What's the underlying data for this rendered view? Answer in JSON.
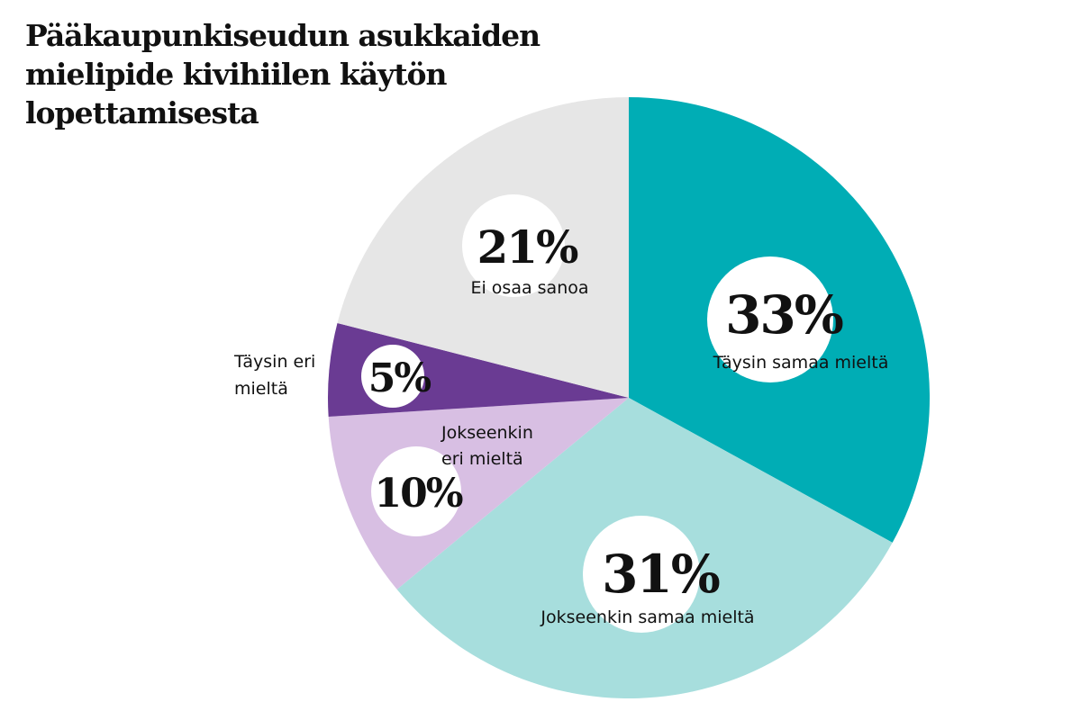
{
  "title": "Pääkaupunkiseudun asukkaiden mielipide kivihiilen käytön lopettamisesta",
  "chart_data": {
    "type": "pie",
    "title": "Pääkaupunkiseudun asukkaiden mielipide kivihiilen käytön lopettamisesta",
    "slices": [
      {
        "label": "Täysin samaa mieltä",
        "value": 33,
        "value_label": "33%",
        "color": "#00adb5"
      },
      {
        "label": "Jokseenkin samaa mieltä",
        "value": 31,
        "value_label": "31%",
        "color": "#a7dedd"
      },
      {
        "label": "Jokseenkin eri mieltä",
        "value": 10,
        "value_label": "10%",
        "color": "#d8bfe3"
      },
      {
        "label": "Täysin eri mieltä",
        "value": 5,
        "value_label": "5%",
        "color": "#6a3b93"
      },
      {
        "label": "Ei osaa sanoa",
        "value": 21,
        "value_label": "21%",
        "color": "#e6e6e6"
      }
    ],
    "start": "top",
    "direction": "clockwise"
  }
}
